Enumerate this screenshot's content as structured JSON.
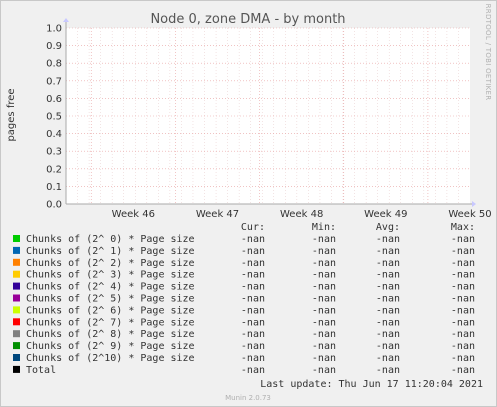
{
  "chart_data": {
    "type": "line",
    "title": "Node 0, zone DMA - by month",
    "ylabel": "pages free",
    "xlabel": "",
    "ylim": [
      0.0,
      1.0
    ],
    "y_ticks": [
      "0.0",
      "0.1",
      "0.2",
      "0.3",
      "0.4",
      "0.5",
      "0.6",
      "0.7",
      "0.8",
      "0.9",
      "1.0"
    ],
    "x_ticks": [
      "Week 46",
      "Week 47",
      "Week 48",
      "Week 49",
      "Week 50"
    ],
    "grid": true,
    "legend_placement": "bottom",
    "columns": [
      "Cur:",
      "Min:",
      "Avg:",
      "Max:"
    ],
    "series": [
      {
        "name": "Chunks of (2^ 0) * Page size",
        "color": "#00cc00",
        "cur": "-nan",
        "min": "-nan",
        "avg": "-nan",
        "max": "-nan"
      },
      {
        "name": "Chunks of (2^ 1) * Page size",
        "color": "#0066b3",
        "cur": "-nan",
        "min": "-nan",
        "avg": "-nan",
        "max": "-nan"
      },
      {
        "name": "Chunks of (2^ 2) * Page size",
        "color": "#ff8000",
        "cur": "-nan",
        "min": "-nan",
        "avg": "-nan",
        "max": "-nan"
      },
      {
        "name": "Chunks of (2^ 3) * Page size",
        "color": "#ffcc00",
        "cur": "-nan",
        "min": "-nan",
        "avg": "-nan",
        "max": "-nan"
      },
      {
        "name": "Chunks of (2^ 4) * Page size",
        "color": "#330099",
        "cur": "-nan",
        "min": "-nan",
        "avg": "-nan",
        "max": "-nan"
      },
      {
        "name": "Chunks of (2^ 5) * Page size",
        "color": "#990099",
        "cur": "-nan",
        "min": "-nan",
        "avg": "-nan",
        "max": "-nan"
      },
      {
        "name": "Chunks of (2^ 6) * Page size",
        "color": "#ccff00",
        "cur": "-nan",
        "min": "-nan",
        "avg": "-nan",
        "max": "-nan"
      },
      {
        "name": "Chunks of (2^ 7) * Page size",
        "color": "#ff0000",
        "cur": "-nan",
        "min": "-nan",
        "avg": "-nan",
        "max": "-nan"
      },
      {
        "name": "Chunks of (2^ 8) * Page size",
        "color": "#808080",
        "cur": "-nan",
        "min": "-nan",
        "avg": "-nan",
        "max": "-nan"
      },
      {
        "name": "Chunks of (2^ 9) * Page size",
        "color": "#008f00",
        "cur": "-nan",
        "min": "-nan",
        "avg": "-nan",
        "max": "-nan"
      },
      {
        "name": "Chunks of (2^10) * Page size",
        "color": "#00487d",
        "cur": "-nan",
        "min": "-nan",
        "avg": "-nan",
        "max": "-nan"
      },
      {
        "name": "Total",
        "color": "#000000",
        "cur": "-nan",
        "min": "-nan",
        "avg": "-nan",
        "max": "-nan"
      }
    ]
  },
  "last_update": "Last update: Thu Jun 17 11:20:04 2021",
  "side_label": "RRDTOOL / TOBI OETIKER",
  "footer": "Munin 2.0.73"
}
